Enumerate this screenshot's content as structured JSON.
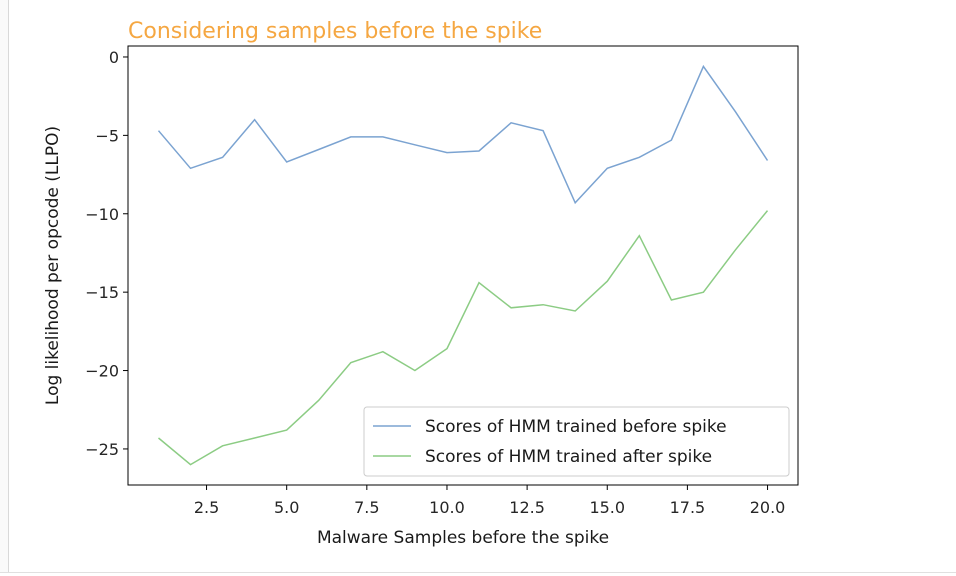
{
  "chart_data": {
    "type": "line",
    "title": "Considering samples before the spike",
    "title_color": "#f5a742",
    "xlabel": "Malware Samples before the spike",
    "ylabel": "Log likelihood per opcode (LLPO)",
    "xlim": [
      0.05,
      20.95
    ],
    "ylim": [
      -27.3,
      0.7
    ],
    "xticks": [
      2.5,
      5.0,
      7.5,
      10.0,
      12.5,
      15.0,
      17.5,
      20.0
    ],
    "xtick_labels": [
      "2.5",
      "5.0",
      "7.5",
      "10.0",
      "12.5",
      "15.0",
      "17.5",
      "20.0"
    ],
    "yticks": [
      0,
      -5,
      -10,
      -15,
      -20,
      -25
    ],
    "ytick_labels": [
      "0",
      "−5",
      "−10",
      "−15",
      "−20",
      "−25"
    ],
    "grid": false,
    "legend_position": "lower-right",
    "x": [
      1,
      2,
      3,
      4,
      5,
      6,
      7,
      8,
      9,
      10,
      11,
      12,
      13,
      14,
      15,
      16,
      17,
      18,
      19,
      20
    ],
    "series": [
      {
        "name": "Scores of HMM trained before spike",
        "color": "#7ba3d1",
        "values": [
          -4.7,
          -7.1,
          -6.4,
          -4.0,
          -6.7,
          -5.9,
          -5.1,
          -5.1,
          -5.6,
          -6.1,
          -6.0,
          -4.2,
          -4.7,
          -9.3,
          -7.1,
          -6.4,
          -5.3,
          -0.6,
          -3.5,
          -6.6
        ]
      },
      {
        "name": "Scores of HMM trained after spike",
        "color": "#8ccc84",
        "values": [
          -24.3,
          -26.0,
          -24.8,
          -24.3,
          -23.8,
          -21.9,
          -19.5,
          -18.8,
          -20.0,
          -18.6,
          -14.4,
          -16.0,
          -15.8,
          -16.2,
          -14.3,
          -11.4,
          -15.5,
          -15.0,
          -12.3,
          -9.8
        ]
      }
    ]
  }
}
